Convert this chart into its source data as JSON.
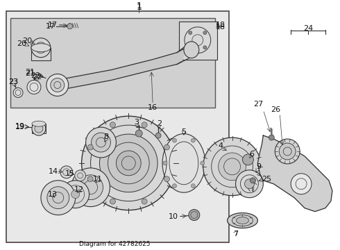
{
  "bg": "#ffffff",
  "box_bg": "#e8e8e8",
  "inner_bg": "#d8d8d8",
  "line_color": "#333333",
  "label_color": "#111111",
  "fontsize": 8,
  "fig_w": 4.9,
  "fig_h": 3.6,
  "dpi": 100
}
